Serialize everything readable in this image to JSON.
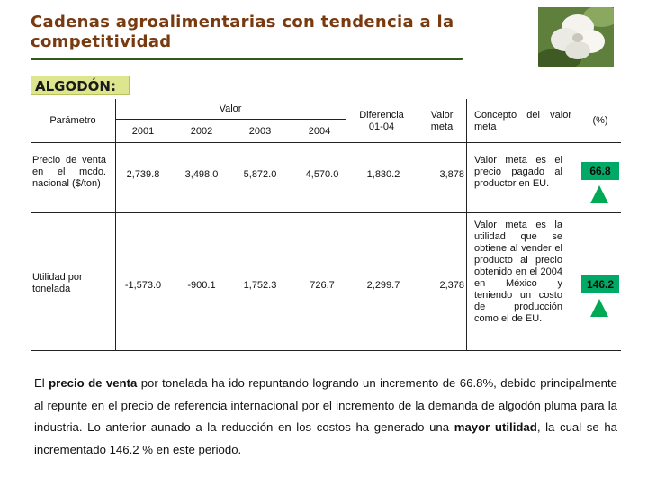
{
  "header": {
    "title": "Cadenas agroalimentarias con tendencia a la competitividad"
  },
  "section_label": "ALGODÓN:",
  "table": {
    "col_headers": {
      "parametro": "Parámetro",
      "valor": "Valor",
      "years": [
        "2001",
        "2002",
        "2003",
        "2004"
      ],
      "diferencia": "Diferencia 01-04",
      "valor_meta": "Valor meta",
      "concepto": "Concepto del valor meta",
      "pct": "(%)"
    },
    "rows": [
      {
        "parametro": "Precio de venta en el mcdo. nacional ($/ton)",
        "values": [
          "2,739.8",
          "3,498.0",
          "5,872.0",
          "4,570.0"
        ],
        "diferencia": "1,830.2",
        "valor_meta": "3,878",
        "concepto": "Valor meta es el precio pagado al productor en EU.",
        "pct": "66.8",
        "trend_icon": "up-arrow-icon"
      },
      {
        "parametro": "Utilidad por tonelada",
        "values": [
          "-1,573.0",
          "-900.1",
          "1,752.3",
          "726.7"
        ],
        "diferencia": "2,299.7",
        "valor_meta": "2,378",
        "concepto": "Valor meta es la utilidad que se obtiene al vender el producto al precio obtenido en el 2004 en México y teniendo un costo de producción como el de EU.",
        "pct": "146.2",
        "trend_icon": "up-arrow-icon"
      }
    ]
  },
  "paragraph": {
    "s1_bold_a": "El",
    "s1_bold_b": "precio de venta",
    "s1_rest": "por tonelada ha ido repuntando logrando un incremento de 66.8%, debido principalmente al repunte en el precio de referencia internacional por el incremento de la demanda de algodón pluma para la industria. Lo anterior aunado a la reducción en los costos ha generado una",
    "s2_bold": "mayor utilidad",
    "s2_rest": ", la cual se ha incrementado 146.2 % en este periodo."
  },
  "colors": {
    "title": "#7a3a10",
    "rule": "#2e5a1a",
    "label_bg": "#dde58e",
    "pct_box": "#00aa66",
    "arrow": "#00aa55"
  }
}
